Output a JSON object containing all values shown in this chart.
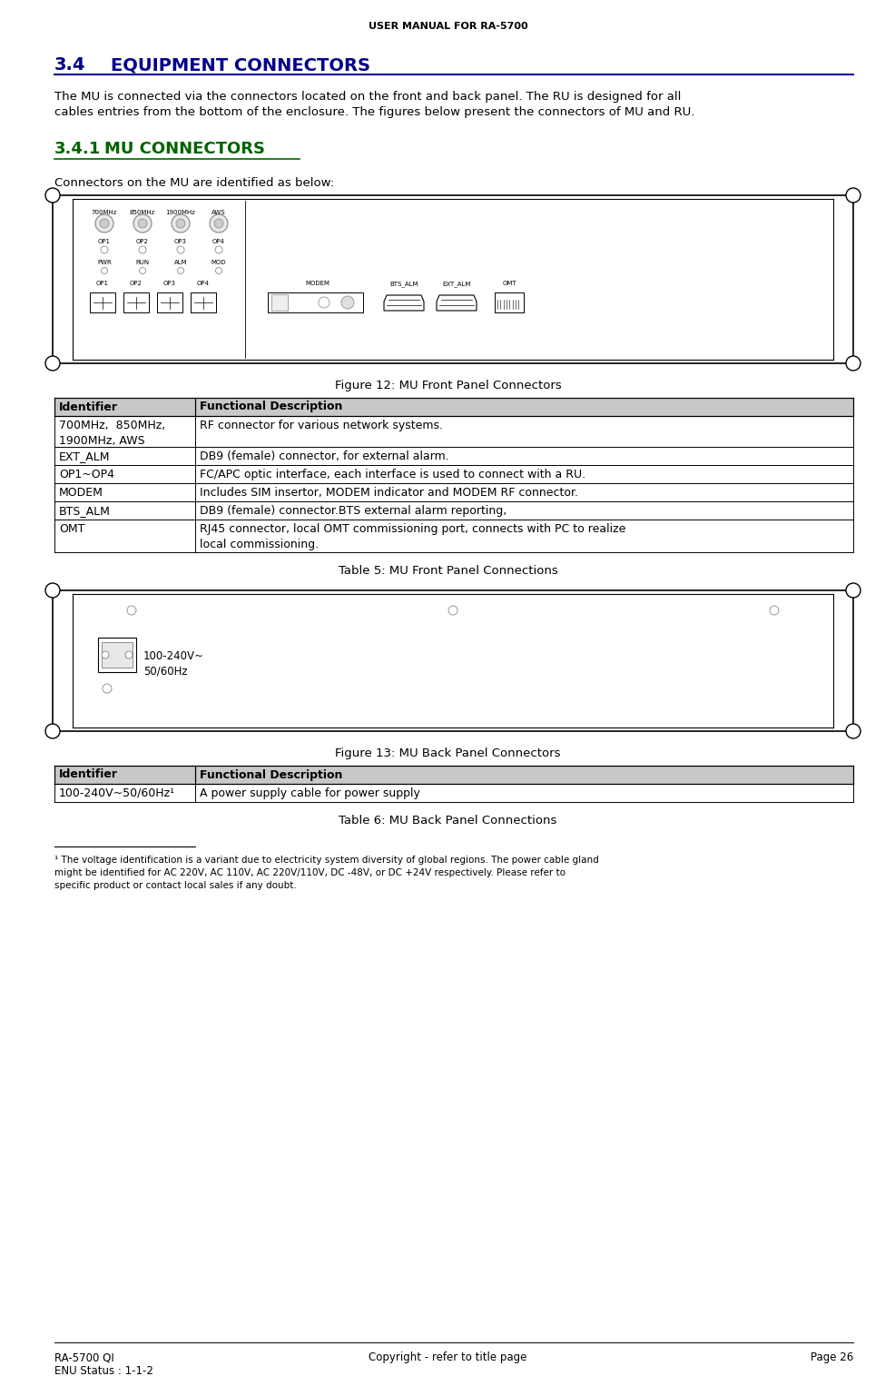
{
  "page_title": "USER MANUAL FOR RA-5700",
  "section_num": "3.4",
  "section_title": "EQUIPMENT CONNECTORS",
  "section_title_color": "#00008B",
  "intro_text1": "The MU is connected via the connectors located on the front and back panel. The RU is designed for all",
  "intro_text2": "cables entries from the bottom of the enclosure. The figures below present the connectors of MU and RU.",
  "subsection_num": "3.4.1",
  "subsection_title": "MU CONNECTORS",
  "subsection_title_color": "#006400",
  "subsection_intro": "Connectors on the MU are identified as below:",
  "figure12_caption": "Figure 12: MU Front Panel Connectors",
  "figure13_caption": "Figure 13: MU Back Panel Connectors",
  "table5_caption": "Table 5: MU Front Panel Connections",
  "table6_caption": "Table 6: MU Back Panel Connections",
  "table5_headers": [
    "Identifier",
    "Functional Description"
  ],
  "table5_rows": [
    [
      "700MHz,  850MHz,\n1900MHz, AWS",
      "RF connector for various network systems."
    ],
    [
      "EXT_ALM",
      "DB9 (female) connector, for external alarm."
    ],
    [
      "OP1~OP4",
      "FC/APC optic interface, each interface is used to connect with a RU."
    ],
    [
      "MODEM",
      "Includes SIM insertor, MODEM indicator and MODEM RF connector."
    ],
    [
      "BTS_ALM",
      "DB9 (female) connector.BTS external alarm reporting,"
    ],
    [
      "OMT",
      "RJ45 connector, local OMT commissioning port, connects with PC to realize\nlocal commissioning."
    ]
  ],
  "table6_headers": [
    "Identifier",
    "Functional Description"
  ],
  "table6_rows": [
    [
      "100-240V~50/60Hz¹",
      "A power supply cable for power supply"
    ]
  ],
  "footnote_marker": "¹",
  "footnote_text": " The voltage identification is a variant due to electricity system diversity of global regions. The power cable gland\nmight be identified for AC 220V, AC 110V, AC 220V/110V, DC -48V, or DC +24V respectively. Please refer to\nspecific product or contact local sales if any doubt.",
  "footer_left1": "RA-5700 QI",
  "footer_left2": "ENU Status : 1-1-2",
  "footer_center": "Copyright - refer to title page",
  "footer_right": "Page 26",
  "bg_color": "#ffffff"
}
